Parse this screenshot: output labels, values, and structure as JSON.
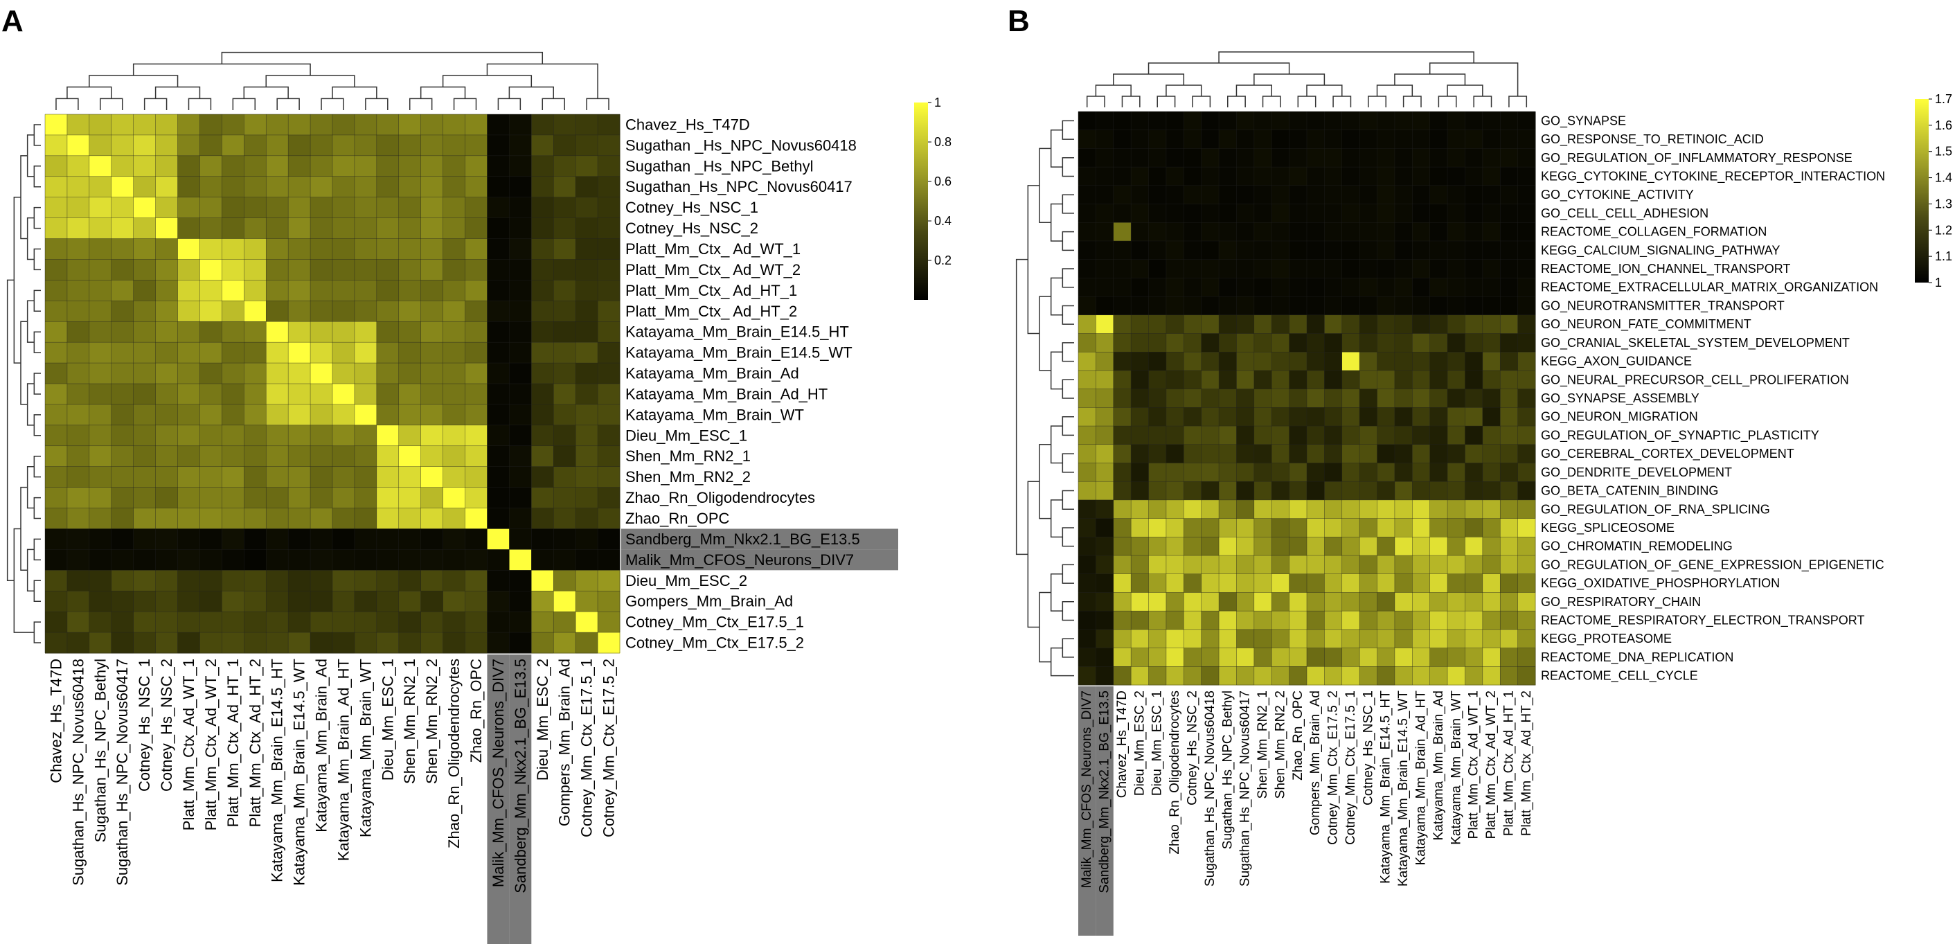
{
  "chart_data": [
    {
      "type": "heatmap",
      "panel_letter": "A",
      "title": "",
      "colorbar": {
        "min": 0,
        "max": 1,
        "ticks": [
          "0.2",
          "0.4",
          "0.6",
          "0.8",
          "1"
        ]
      },
      "row_labels": [
        "Chavez_Hs_T47D",
        "Sugathan _Hs_NPC_Novus60418",
        "Sugathan _Hs_NPC_Bethyl",
        "Sugathan_Hs_NPC_Novus60417",
        "Cotney_Hs_NSC_1",
        "Cotney_Hs_NSC_2",
        "Platt_Mm_Ctx_ Ad_WT_1",
        "Platt_Mm_Ctx_ Ad_WT_2",
        "Platt_Mm_Ctx_ Ad_HT_1",
        "Platt_Mm_Ctx_ Ad_HT_2",
        "Katayama_Mm_Brain_E14.5_HT",
        "Katayama_Mm_Brain_E14.5_WT",
        "Katayama_Mm_Brain_Ad",
        "Katayama_Mm_Brain_Ad_HT",
        "Katayama_Mm_Brain_WT",
        "Dieu_Mm_ESC_1",
        "Shen_Mm_RN2_1",
        "Shen_Mm_RN2_2",
        "Zhao_Rn_Oligodendrocytes",
        "Zhao_Rn_OPC",
        "Sandberg_Mm_Nkx2.1_BG_E13.5",
        "Malik_Mm_CFOS_Neurons_DIV7",
        "Dieu_Mm_ESC_2",
        "Gompers_Mm_Brain_Ad",
        "Cotney_Mm_Ctx_E17.5_1",
        "Cotney_Mm_Ctx_E17.5_2"
      ],
      "col_labels": [
        "Chavez_Hs_T47D",
        "Sugathan_Hs_NPC_Novus60418",
        "Sugathan_Hs_NPC_Bethyl",
        "Sugathan_Hs_NPC_Novus60417",
        "Cotney_Hs_NSC_1",
        "Cotney_Hs_NSC_2",
        "Platt_Mm_Ctx_Ad_WT_1",
        "Platt_Mm_Ctx_Ad_WT_2",
        "Platt_Mm_Ctx_Ad_HT_1",
        "Platt_Mm_Ctx_Ad_HT_2",
        "Katayama_Mm_Brain_E14.5_HT",
        "Katayama_Mm_Brain_E14.5_WT",
        "Katayama_Mm_Brain_Ad",
        "Katayama_Mm_Brain_Ad_HT",
        "Katayama_Mm_Brain_WT",
        "Dieu_Mm_ESC_1",
        "Shen_Mm_RN2_1",
        "Shen_Mm_RN2_2",
        "Zhao_Rn_Oligodendrocytes",
        "Zhao_Rn_OPC",
        "Malik_Mm_CFOS_Neurons_DIV7",
        "Sandberg_Mm_Nkx2.1_BG_E13.5",
        "Dieu_Mm_ESC_2",
        "Gompers_Mm_Brain_Ad",
        "Cotney_Mm_Ctx_E17.5_1",
        "Cotney_Mm_Ctx_E17.5_2"
      ],
      "highlighted_rows": [
        20,
        21
      ],
      "highlighted_cols": [
        20,
        21
      ]
    },
    {
      "type": "heatmap",
      "panel_letter": "B",
      "title": "",
      "colorbar": {
        "min": 1,
        "max": 1.7,
        "ticks": [
          "1",
          "1.1",
          "1.2",
          "1.3",
          "1.4",
          "1.5",
          "1.6",
          "1.7"
        ]
      },
      "row_labels": [
        "GO_SYNAPSE",
        "GO_RESPONSE_TO_RETINOIC_ACID",
        "GO_REGULATION_OF_INFLAMMATORY_RESPONSE",
        "KEGG_CYTOKINE_CYTOKINE_RECEPTOR_INTERACTION",
        "GO_CYTOKINE_ACTIVITY",
        "GO_CELL_CELL_ADHESION",
        "REACTOME_COLLAGEN_FORMATION",
        "KEGG_CALCIUM_SIGNALING_PATHWAY",
        "REACTOME_ION_CHANNEL_TRANSPORT",
        "REACTOME_EXTRACELLULAR_MATRIX_ORGANIZATION",
        "GO_NEUROTRANSMITTER_TRANSPORT",
        "GO_NEURON_FATE_COMMITMENT",
        "GO_CRANIAL_SKELETAL_SYSTEM_DEVELOPMENT",
        "KEGG_AXON_GUIDANCE",
        "GO_NEURAL_PRECURSOR_CELL_PROLIFERATION",
        "GO_SYNAPSE_ASSEMBLY",
        "GO_NEURON_MIGRATION",
        "GO_REGULATION_OF_SYNAPTIC_PLASTICITY",
        "GO_CEREBRAL_CORTEX_DEVELOPMENT",
        "GO_DENDRITE_DEVELOPMENT",
        "GO_BETA_CATENIN_BINDING",
        "GO_REGULATION_OF_RNA_SPLICING",
        "KEGG_SPLICEOSOME",
        "GO_CHROMATIN_REMODELING",
        "GO_REGULATION_OF_GENE_EXPRESSION_EPIGENETIC",
        "KEGG_OXIDATIVE_PHOSPHORYLATION",
        "GO_RESPIRATORY_CHAIN",
        "REACTOME_RESPIRATORY_ELECTRON_TRANSPORT",
        "KEGG_PROTEASOME",
        "REACTOME_DNA_REPLICATION",
        "REACTOME_CELL_CYCLE"
      ],
      "col_labels": [
        "Malik_Mm_CFOS_Neurons_DIV7",
        "Sandberg_Mm_Nkx2.1_BG_E13.5",
        "Chavez_Hs_T47D",
        "Dieu_Mm_ESC_2",
        "Dieu_Mm_ESC_1",
        "Zhao_Rn_Oligodendrocytes",
        "Cotney_Hs_NSC_2",
        "Sugathan_Hs_NPC_Novus60418",
        "Sugathan_Hs_NPC_Bethyl",
        "Sugathan_Hs_NPC_Novus60417",
        "Shen_Mm_RN2_1",
        "Shen_Mm_RN2_2",
        "Zhao_Rn_OPC",
        "Gompers_Mm_Brain_Ad",
        "Cotney_Mm_Ctx_E17.5_2",
        "Cotney_Mm_Ctx_E17.5_1",
        "Cotney_Hs_NSC_1",
        "Katayama_Mm_Brain_E14.5_HT",
        "Katayama_Mm_Brain_E14.5_WT",
        "Katayama_Mm_Brain_Ad_HT",
        "Katayama_Mm_Brain_Ad",
        "Katayama_Mm_Brain_WT",
        "Platt_Mm_Ctx_Ad_WT_1",
        "Platt_Mm_Ctx_Ad_WT_2",
        "Platt_Mm_Ctx_Ad_HT_1",
        "Platt_Mm_Ctx_Ad_HT_2"
      ],
      "highlighted_rows": [],
      "highlighted_cols": [
        0,
        1
      ]
    }
  ]
}
